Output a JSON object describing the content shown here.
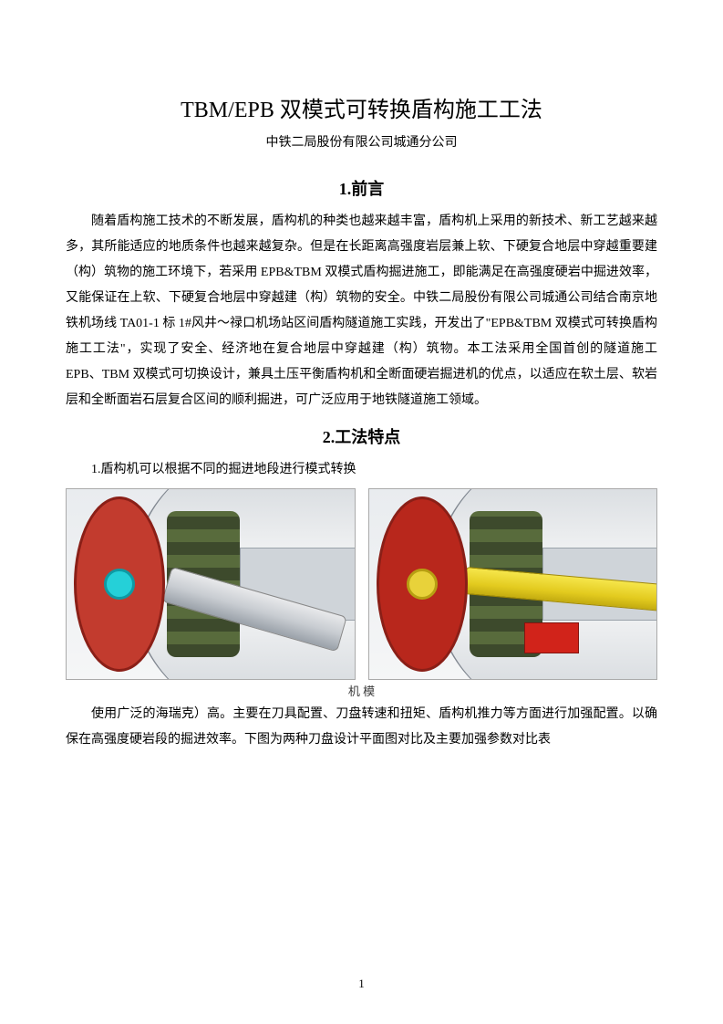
{
  "title": "TBM/EPB 双模式可转换盾构施工工法",
  "subtitle": "中铁二局股份有限公司城通分公司",
  "section1": {
    "heading": "1.前言",
    "para": "随着盾构施工技术的不断发展，盾构机的种类也越来越丰富，盾构机上采用的新技术、新工艺越来越多，其所能适应的地质条件也越来越复杂。但是在长距离高强度岩层兼上软、下硬复合地层中穿越重要建（构）筑物的施工环境下，若采用 EPB&TBM 双模式盾构掘进施工，即能满足在高强度硬岩中掘进效率，又能保证在上软、下硬复合地层中穿越建（构）筑物的安全。中铁二局股份有限公司城通公司结合南京地铁机场线 TA01-1 标 1#风井～禄口机场站区间盾构隧道施工实践，开发出了\"EPB&TBM 双模式可转换盾构施工工法\"，实现了安全、经济地在复合地层中穿越建（构）筑物。本工法采用全国首创的隧道施工 EPB、TBM 双模式可切换设计，兼具土压平衡盾构机和全断面硬岩掘进机的优点，以适应在软土层、软岩层和全断面岩石层复合区间的顺利掘进，可广泛应用于地铁隧道施工领域。"
  },
  "section2": {
    "heading": "2.工法特点",
    "point1": "1.盾构机可以根据不同的掘进地段进行模式转换",
    "caption_fragment": "机 模",
    "para_after_figs": "使用广泛的海瑞克）高。主要在刀具配置、刀盘转速和扭矩、盾构机推力等方面进行加强配置。以确保在高强度硬岩段的掘进效率。下图为两种刀盘设计平面图对比及主要加强参数对比表"
  },
  "figures": {
    "left": {
      "cutter_color": "#c23b2e",
      "hub_color": "#25d0d8",
      "arm_color": "#d9dde1",
      "shell_color": "#e6e8ea",
      "gear_color": "#4d5e36"
    },
    "right": {
      "cutter_color": "#b8271c",
      "hub_color": "#e8d23a",
      "arm_color": "#f1da2e",
      "shell_color": "#e6e8ea",
      "gear_color": "#4d5e36",
      "accent_red": "#d1231a"
    }
  },
  "colors": {
    "text": "#000000",
    "background": "#ffffff"
  },
  "page_number": "1"
}
